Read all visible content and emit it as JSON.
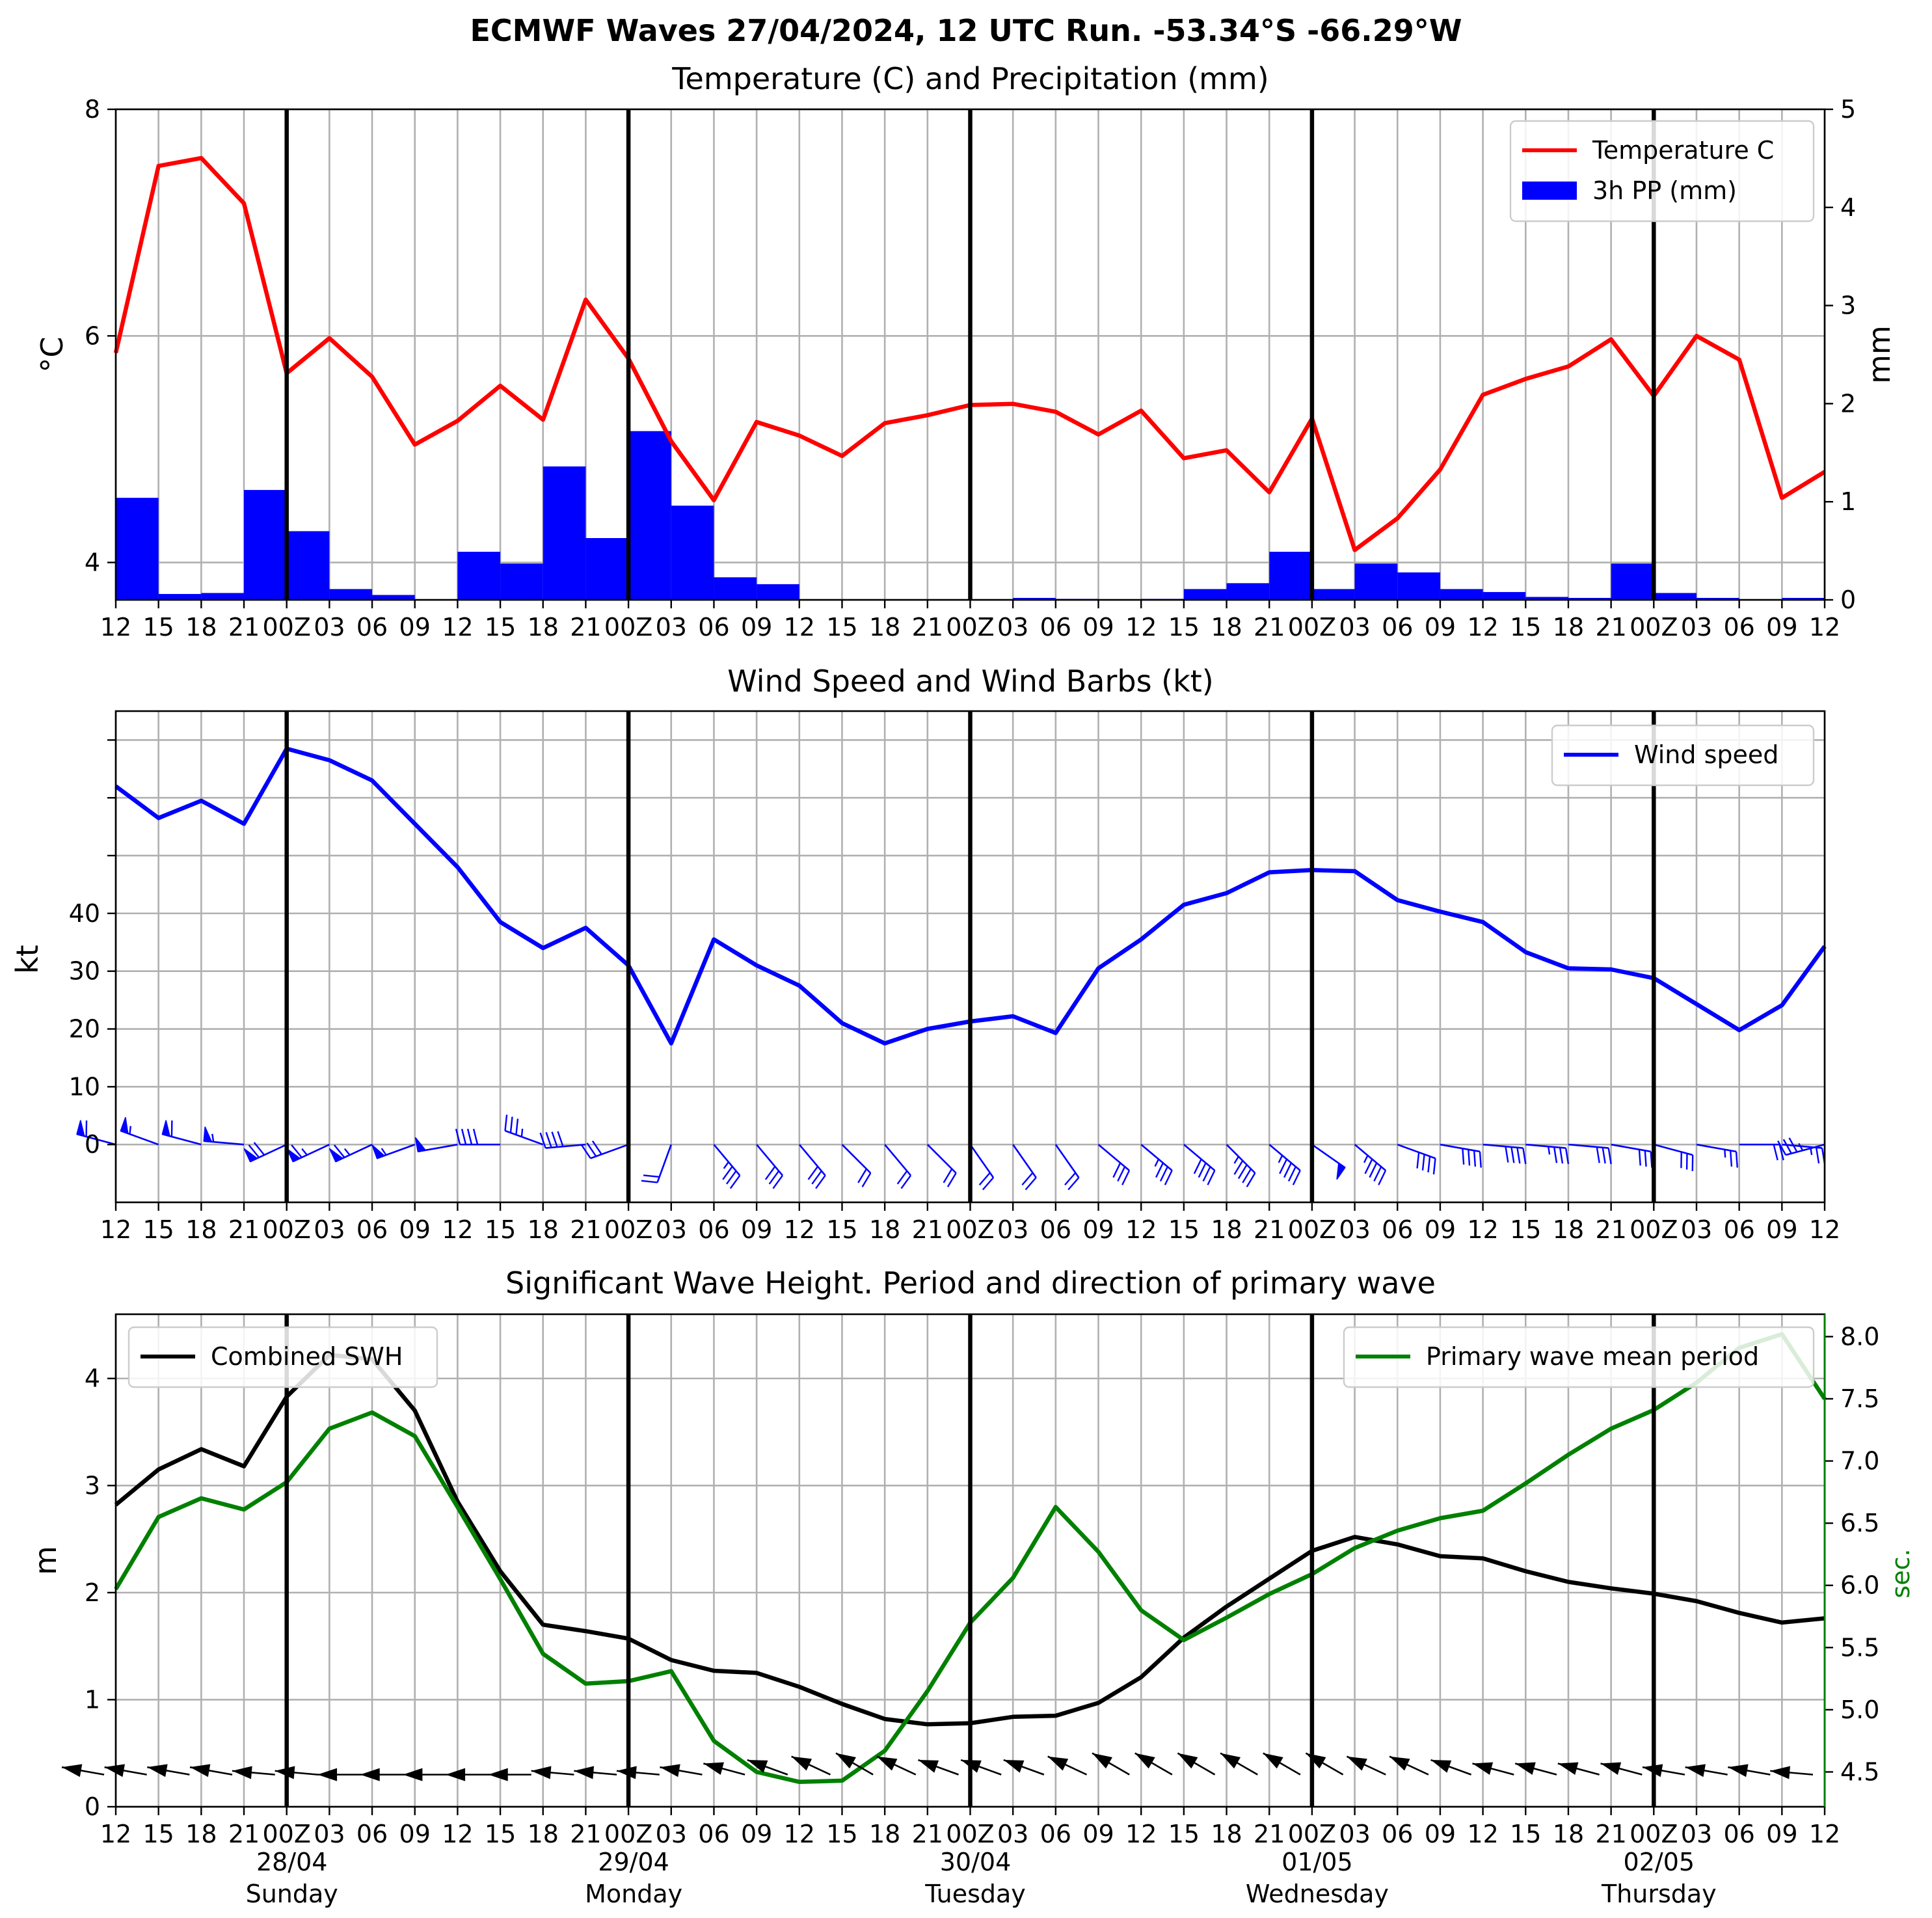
{
  "title": "ECMWF Waves 27/04/2024, 12 UTC Run. -53.34°S -66.29°W",
  "x_tick_labels": [
    "12",
    "15",
    "18",
    "21",
    "00Z",
    "03",
    "06",
    "09",
    "12",
    "15",
    "18",
    "21",
    "00Z",
    "03",
    "06",
    "09",
    "12",
    "15",
    "18",
    "21",
    "00Z",
    "03",
    "06",
    "09",
    "12",
    "15",
    "18",
    "21",
    "00Z",
    "03",
    "06",
    "09",
    "12",
    "15",
    "18",
    "21",
    "00Z",
    "03",
    "06",
    "09",
    "12"
  ],
  "day_labels": [
    {
      "date": "28/04",
      "day": "Sunday",
      "index": 4
    },
    {
      "date": "29/04",
      "day": "Monday",
      "index": 12
    },
    {
      "date": "30/04",
      "day": "Tuesday",
      "index": 20
    },
    {
      "date": "01/05",
      "day": "Wednesday",
      "index": 28
    },
    {
      "date": "02/05",
      "day": "Thursday",
      "index": 36
    }
  ],
  "colors": {
    "temperature": "#ff0000",
    "precip": "#0000ff",
    "wind": "#0000ff",
    "swh": "#000000",
    "period": "#008000",
    "grid": "#b0b0b0"
  },
  "chart_data": [
    {
      "type": "line",
      "title": "Temperature (C) and Precipitation (mm)",
      "ylabel": "$^\\circ$C",
      "ylabel_right": "mm",
      "ylim": [
        3.67,
        8.0
      ],
      "yticks": [
        4,
        6,
        8
      ],
      "ylim_right": [
        0,
        5
      ],
      "yticks_right": [
        0,
        1,
        2,
        3,
        4,
        5
      ],
      "grid": true,
      "legend_position": "top-right",
      "series": [
        {
          "name": "Temperature C",
          "type": "line",
          "axis": "left",
          "values": [
            5.85,
            7.5,
            7.57,
            7.17,
            5.67,
            5.98,
            5.64,
            5.04,
            5.25,
            5.56,
            5.26,
            6.32,
            5.8,
            5.07,
            4.55,
            5.24,
            5.12,
            4.94,
            5.23,
            5.3,
            5.39,
            5.4,
            5.33,
            5.13,
            5.34,
            4.92,
            4.99,
            4.62,
            5.27,
            4.11,
            4.39,
            4.82,
            5.48,
            5.62,
            5.73,
            5.97,
            5.47,
            6.0,
            5.79,
            4.57,
            4.8
          ]
        },
        {
          "name": "3h PP (mm)",
          "type": "bar",
          "axis": "right",
          "values": [
            1.04,
            0.06,
            0.07,
            1.12,
            0.7,
            0.11,
            0.05,
            0,
            0.49,
            0.37,
            1.36,
            0.63,
            1.72,
            0.96,
            0.23,
            0.16,
            0,
            0,
            0,
            0,
            0,
            0.02,
            0.01,
            0,
            0.01,
            0.11,
            0.17,
            0.49,
            0.11,
            0.37,
            0.28,
            0.11,
            0.08,
            0.03,
            0.02,
            0.37,
            0.07,
            0.02,
            0,
            0.02
          ]
        }
      ]
    },
    {
      "type": "line",
      "title": "Wind Speed and Wind Barbs (kt)",
      "ylabel": "kt",
      "ylim": [
        -10,
        75
      ],
      "yticks": [
        0,
        10,
        20,
        30,
        40,
        50,
        60,
        70
      ],
      "ytick_labels": [
        "0",
        "10",
        "20",
        "30",
        "40",
        "",
        "",
        ""
      ],
      "grid": true,
      "legend_position": "top-right",
      "series": [
        {
          "name": "Wind speed",
          "type": "line",
          "values": [
            62,
            56.5,
            59.5,
            55.5,
            68.5,
            66.5,
            63,
            55.5,
            48,
            38.5,
            34,
            37.5,
            31,
            17.5,
            35.5,
            31,
            27.5,
            21,
            17.5,
            20,
            21.3,
            22.2,
            19.3,
            30.5,
            35.5,
            41.5,
            43.5,
            47.1,
            47.5,
            47.3,
            42.3,
            40.3,
            38.5,
            33.3,
            30.5,
            30.3,
            28.8,
            24.3,
            19.8,
            24.1,
            34.3
          ]
        },
        {
          "name": "Wind barbs",
          "type": "barbs",
          "speed": [
            62,
            56.5,
            59.5,
            55.5,
            68.5,
            66.5,
            63,
            55.5,
            48,
            38.5,
            34,
            37.5,
            31,
            17.5,
            35.5,
            31,
            27.5,
            21,
            17.5,
            20,
            21.3,
            22.2,
            19.3,
            30.5,
            35.5,
            41.5,
            43.5,
            47.1,
            47.5,
            47.3,
            42.3,
            40.3,
            38.5,
            33.3,
            30.5,
            30.3,
            28.8,
            24.3,
            19.8,
            24.1,
            34.3
          ],
          "direction_deg": [
            285,
            290,
            285,
            275,
            245,
            245,
            245,
            250,
            260,
            270,
            290,
            265,
            250,
            200,
            140,
            140,
            140,
            135,
            140,
            135,
            145,
            145,
            145,
            130,
            130,
            130,
            135,
            130,
            125,
            130,
            110,
            100,
            95,
            95,
            95,
            100,
            105,
            100,
            90,
            95,
            255
          ]
        }
      ]
    },
    {
      "type": "line",
      "title": "Significant Wave Height. Period and direction of primary wave",
      "ylabel": "m",
      "ylabel_right": "sec.",
      "ylim": [
        0,
        4.6
      ],
      "yticks": [
        0,
        1,
        2,
        3,
        4
      ],
      "ylim_right": [
        4.22,
        8.18
      ],
      "yticks_right": [
        4.5,
        5.0,
        5.5,
        6.0,
        6.5,
        7.0,
        7.5,
        8.0
      ],
      "ytick_labels_right": [
        "4.5",
        "5.0",
        "5.5",
        "6.0",
        "6.5",
        "7.0",
        "7.5",
        "8.0"
      ],
      "grid": true,
      "legend_position": "top-left / top-right",
      "series": [
        {
          "name": "Combined SWH",
          "type": "line",
          "axis": "left",
          "values": [
            2.82,
            3.15,
            3.34,
            3.18,
            3.83,
            4.22,
            4.18,
            3.7,
            2.85,
            2.2,
            1.7,
            1.64,
            1.57,
            1.37,
            1.27,
            1.25,
            1.12,
            0.96,
            0.82,
            0.77,
            0.78,
            0.84,
            0.85,
            0.97,
            1.21,
            1.58,
            1.87,
            2.13,
            2.39,
            2.52,
            2.45,
            2.34,
            2.32,
            2.2,
            2.1,
            2.04,
            1.99,
            1.92,
            1.81,
            1.72,
            1.76
          ]
        },
        {
          "name": "Primary wave mean period",
          "type": "line",
          "axis": "right",
          "values": [
            5.97,
            6.55,
            6.7,
            6.61,
            6.83,
            7.26,
            7.39,
            7.2,
            6.63,
            6.05,
            5.45,
            5.21,
            5.23,
            5.31,
            4.75,
            4.5,
            4.42,
            4.43,
            4.67,
            5.15,
            5.7,
            6.06,
            6.63,
            6.27,
            5.8,
            5.56,
            5.74,
            5.93,
            6.09,
            6.3,
            6.44,
            6.54,
            6.6,
            6.82,
            7.05,
            7.26,
            7.41,
            7.63,
            7.91,
            8.02,
            7.5
          ]
        },
        {
          "name": "Primary wave direction",
          "type": "arrows",
          "direction_deg": [
            280,
            280,
            280,
            280,
            275,
            275,
            270,
            270,
            270,
            270,
            270,
            275,
            275,
            275,
            280,
            285,
            290,
            295,
            300,
            295,
            290,
            290,
            290,
            295,
            300,
            300,
            300,
            300,
            300,
            300,
            295,
            295,
            290,
            285,
            285,
            285,
            285,
            280,
            280,
            280,
            275
          ]
        }
      ]
    }
  ]
}
